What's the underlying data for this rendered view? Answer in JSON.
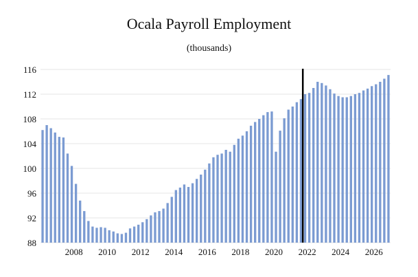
{
  "chart_data": {
    "type": "bar",
    "title": "Ocala Payroll Employment",
    "subtitle": "(thousands)",
    "xlabel": "",
    "ylabel": "",
    "ylim": [
      88,
      116
    ],
    "yticks": [
      88,
      92,
      96,
      100,
      104,
      108,
      112,
      116
    ],
    "xticks": [
      "2008",
      "2010",
      "2012",
      "2014",
      "2016",
      "2018",
      "2020",
      "2022",
      "2024",
      "2026"
    ],
    "grid": true,
    "legend": "none",
    "bar_color": "#7b9bd2",
    "forecast_line_color": "#000000",
    "forecast_start_index": 63,
    "values": [
      106.2,
      107.0,
      106.5,
      105.8,
      105.1,
      105.0,
      102.4,
      100.4,
      97.5,
      94.8,
      93.1,
      91.5,
      90.6,
      90.4,
      90.5,
      90.4,
      90.0,
      89.8,
      89.5,
      89.4,
      89.6,
      90.3,
      90.6,
      90.9,
      91.3,
      91.8,
      92.4,
      92.9,
      93.1,
      93.5,
      94.4,
      95.4,
      96.5,
      96.9,
      97.4,
      97.0,
      97.6,
      98.3,
      99.0,
      99.8,
      100.8,
      101.8,
      102.2,
      102.4,
      103.0,
      102.7,
      103.8,
      104.8,
      105.3,
      106.0,
      106.9,
      107.5,
      108.0,
      108.6,
      109.1,
      109.2,
      102.7,
      106.1,
      108.1,
      109.5,
      110.0,
      110.7,
      111.2,
      112.0,
      112.2,
      113.0,
      114.0,
      113.8,
      113.4,
      112.8,
      112.1,
      111.7,
      111.5,
      111.5,
      111.7,
      112.0,
      112.2,
      112.6,
      112.9,
      113.3,
      113.6,
      114.0,
      114.5,
      115.1
    ]
  }
}
